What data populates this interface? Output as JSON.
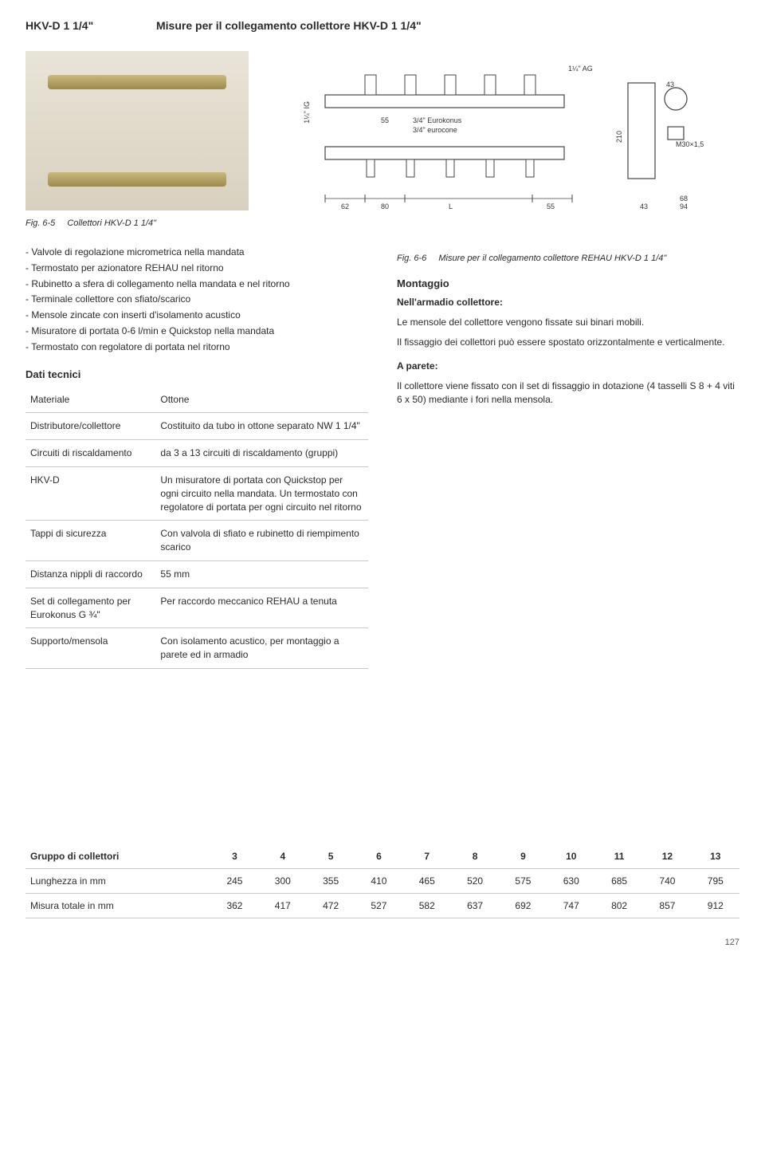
{
  "header": {
    "product_code": "HKV-D 1 1/4\"",
    "measures_title": "Misure per il collegamento collettore HKV-D 1 1/4\""
  },
  "figures": {
    "fig65_num": "Fig. 6-5",
    "fig65_label": "Collettori HKV-D 1 1/4\"",
    "fig66_num": "Fig. 6-6",
    "fig66_label": "Misure per il collegamento collettore REHAU HKV-D 1 1/4\""
  },
  "schematic": {
    "dims": {
      "top_thread": "1¼\" AG",
      "left_thread": "1¼\" IG",
      "eurokonus1": "3/4\" Eurokonus",
      "eurokonus2": "3/4\" eurocone",
      "left_pitch": "55",
      "bottom_left": "62",
      "bottom_pitch": "80",
      "bottom_end": "55",
      "bottom_L": "L",
      "bottom_right1": "43",
      "bottom_right2": "68",
      "bottom_right3": "94",
      "side_height": "210",
      "side_top": "43",
      "thread": "M30×1,5"
    }
  },
  "bullets": [
    "Valvole di regolazione micrometrica nella mandata",
    "Termostato per azionatore REHAU nel ritorno",
    "Rubinetto a sfera di collegamento nella mandata e nel ritorno",
    "Terminale collettore con sfiato/scarico",
    "Mensole zincate con inserti d'isolamento acustico",
    "Misuratore di portata 0-6 l/min e Quickstop nella mandata",
    "Termostato con regolatore di portata nel ritorno"
  ],
  "dati_tecnici_title": "Dati tecnici",
  "spec_rows": [
    {
      "k": "Materiale",
      "v": "Ottone"
    },
    {
      "k": "Distributore/collettore",
      "v": "Costituito da tubo in ottone separato NW 1 1/4\""
    },
    {
      "k": "Circuiti di riscaldamento",
      "v": "da 3 a 13 circuiti di riscaldamento (gruppi)"
    },
    {
      "k": "HKV-D",
      "v": "Un misuratore di portata con Quickstop per ogni circuito nella mandata.\nUn termostato con regolatore di portata per ogni circuito nel ritorno"
    },
    {
      "k": "Tappi di sicurezza",
      "v": "Con valvola di sfiato e rubinetto di riempimento scarico"
    },
    {
      "k": "Distanza nippli di raccordo",
      "v": "55 mm"
    },
    {
      "k": "Set di collegamento per Eurokonus G ¾\"",
      "v": "Per raccordo meccanico REHAU a tenuta"
    },
    {
      "k": "Supporto/mensola",
      "v": "Con isolamento acustico, per montaggio a parete ed in armadio"
    }
  ],
  "right_col": {
    "montaggio": "Montaggio",
    "armadio_head": "Nell'armadio collettore:",
    "armadio_p1": "Le mensole del collettore vengono fissate sui binari mobili.",
    "armadio_p2": "Il fissaggio dei collettori può essere spostato orizzontalmente e verticalmente.",
    "parete_head": "A parete:",
    "parete_p": "Il collettore viene fissato con il set di fissaggio in dotazione (4 tasselli S 8 + 4 viti 6 x 50) mediante i fori nella mensola."
  },
  "dims_table": {
    "headers": [
      "Gruppo di collettori",
      "3",
      "4",
      "5",
      "6",
      "7",
      "8",
      "9",
      "10",
      "11",
      "12",
      "13"
    ],
    "rows": [
      {
        "label": "Lunghezza in mm",
        "vals": [
          "245",
          "300",
          "355",
          "410",
          "465",
          "520",
          "575",
          "630",
          "685",
          "740",
          "795"
        ]
      },
      {
        "label": "Misura totale in mm",
        "vals": [
          "362",
          "417",
          "472",
          "527",
          "582",
          "637",
          "692",
          "747",
          "802",
          "857",
          "912"
        ]
      }
    ]
  },
  "page_number": "127"
}
